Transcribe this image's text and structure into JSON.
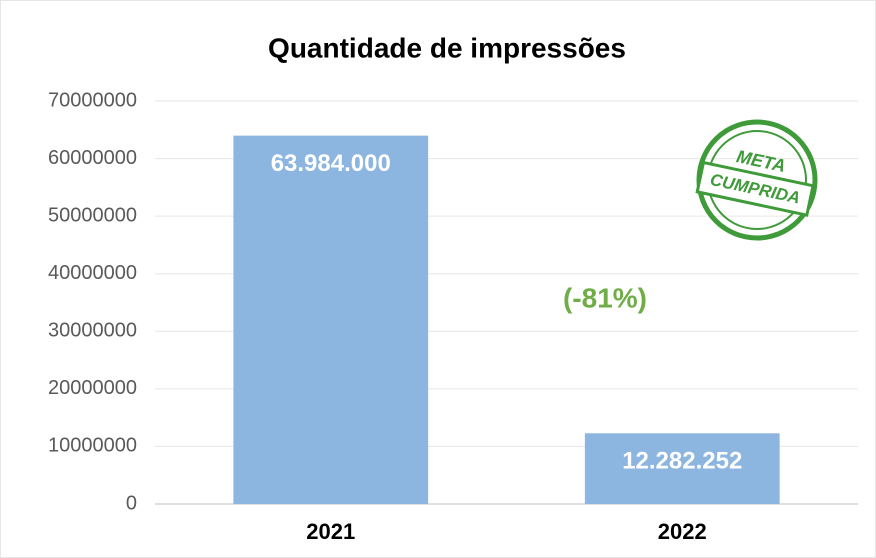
{
  "chart_data": {
    "type": "bar",
    "title": "Quantidade de impressões",
    "categories": [
      "2021",
      "2022"
    ],
    "values": [
      63984000,
      12282252
    ],
    "value_labels": [
      "63.984.000",
      "12.282.252"
    ],
    "color": "#8cb6e0",
    "ylim": [
      0,
      70000000
    ],
    "yticks": [
      0,
      10000000,
      20000000,
      30000000,
      40000000,
      50000000,
      60000000,
      70000000
    ],
    "grid": true,
    "annotation": "(-81%)",
    "stamp": [
      "META",
      "CUMPRIDA"
    ]
  }
}
